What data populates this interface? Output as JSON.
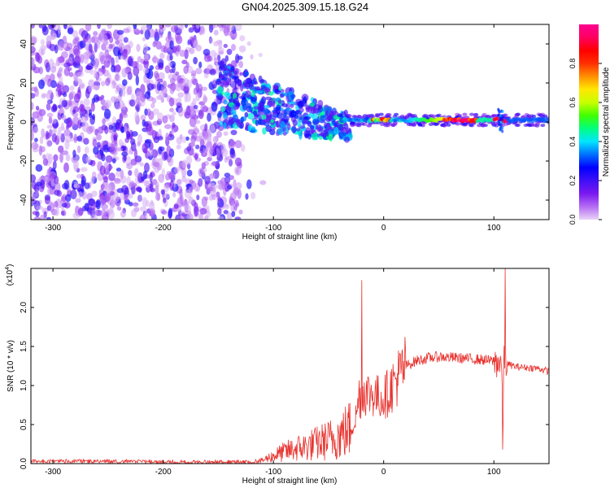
{
  "title": "GN04.2025.309.15.18.G24",
  "chart_data": [
    {
      "type": "heatmap",
      "xlabel": "Height of straight line (km)",
      "ylabel": "Frequency (Hz)",
      "xlim": [
        -320,
        150
      ],
      "ylim": [
        -50,
        50
      ],
      "xticks": [
        -300,
        -200,
        -100,
        0,
        100
      ],
      "yticks": [
        -40,
        -20,
        0,
        20,
        40
      ],
      "colorbar": {
        "label": "Normalized spectral amplitude",
        "range": [
          0,
          1
        ],
        "ticks": [
          "0.0",
          "0.2",
          "0.4",
          "0.6",
          "0.8"
        ],
        "colors": [
          "#e9d3f6",
          "#b46cf3",
          "#7a18f0",
          "#3f10f6",
          "#0000ff",
          "#0070ff",
          "#00e5ff",
          "#00ff7f",
          "#40ff00",
          "#c8ff00",
          "#ffe800",
          "#ff9000",
          "#ff3000",
          "#ff0000",
          "#ff0060",
          "#ff0090"
        ]
      },
      "features": [
        {
          "from_km": -320,
          "to_km": -130,
          "description_values": {
            "freq_spread_hz": [
              -50,
              50
            ],
            "amplitude": [
              0.05,
              0.25
            ]
          }
        },
        {
          "from_km": -150,
          "to_km": -30,
          "description_values": {
            "freq_range_hz": [
              -20,
              40
            ],
            "amplitude": [
              0.2,
              0.45
            ]
          }
        },
        {
          "from_km": -30,
          "to_km": 150,
          "description_values": {
            "freq_center_hz": 1,
            "amplitude": [
              0.3,
              1.0
            ]
          }
        }
      ]
    },
    {
      "type": "line",
      "xlabel": "Height of straight line (km)",
      "ylabel": "SNR (10 * v/v)",
      "exponent_label": "(x10",
      "exponent_sup": "4",
      "exponent_close": ")",
      "xlim": [
        -320,
        150
      ],
      "ylim": [
        0,
        25000
      ],
      "xticks": [
        -300,
        -200,
        -100,
        0,
        100
      ],
      "yticks": [
        0,
        5000,
        10000,
        15000,
        20000
      ],
      "ytick_labels": [
        "0.0",
        "0.5",
        "1.0",
        "1.5",
        "2.0"
      ],
      "color": "#e8332f",
      "series": [
        {
          "x": [
            -320,
            -300,
            -250,
            -200,
            -150,
            -120,
            -110,
            -100,
            -90,
            -80,
            -70,
            -60,
            -50,
            -40,
            -30,
            -25,
            -22,
            -20,
            -18,
            -15,
            -10,
            -5,
            0,
            5,
            10,
            20,
            30,
            40,
            50,
            60,
            70,
            80,
            90,
            100,
            105,
            107,
            108,
            109,
            110,
            112,
            115,
            120,
            130,
            140,
            150
          ],
          "y": [
            300,
            300,
            300,
            200,
            200,
            200,
            400,
            1000,
            1500,
            1900,
            2200,
            2600,
            3000,
            3600,
            4500,
            6000,
            9000,
            8000,
            9500,
            9000,
            9000,
            8500,
            8500,
            9300,
            10500,
            12500,
            13200,
            13500,
            13700,
            13600,
            13500,
            13400,
            13300,
            13100,
            13000,
            12800,
            3000,
            13000,
            13200,
            12800,
            12600,
            12400,
            12300,
            12200,
            11800
          ]
        }
      ],
      "spikes": [
        {
          "x": -20,
          "y": 23500
        },
        {
          "x": 108,
          "y": 1800
        },
        {
          "x": 110,
          "y": 25000
        }
      ]
    }
  ]
}
